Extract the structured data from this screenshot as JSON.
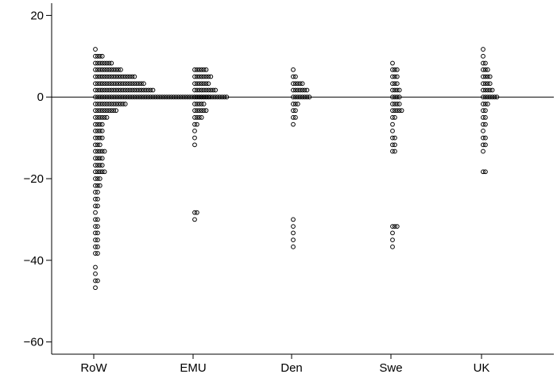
{
  "chart_data": {
    "type": "scatter",
    "title": "",
    "xlabel": "",
    "ylabel": "",
    "categories": [
      "RoW",
      "EMU",
      "Den",
      "Swe",
      "UK"
    ],
    "ylim": [
      -63,
      23
    ],
    "yticks": [
      20,
      0,
      -20,
      -40,
      -60
    ],
    "ytick_labels": [
      "20",
      "0",
      "−20",
      "−40",
      "−60"
    ],
    "reference_line_y": 0,
    "marker": "hollow-circle",
    "series": [
      {
        "category": "RoW",
        "groups": [
          {
            "y": 11.7,
            "n": 1
          },
          {
            "y": 10.0,
            "n": 4
          },
          {
            "y": 8.3,
            "n": 8
          },
          {
            "y": 6.7,
            "n": 12
          },
          {
            "y": 5.0,
            "n": 18
          },
          {
            "y": 3.3,
            "n": 22
          },
          {
            "y": 1.7,
            "n": 26
          },
          {
            "y": 0.0,
            "n": 58
          },
          {
            "y": -1.7,
            "n": 14
          },
          {
            "y": -3.3,
            "n": 10
          },
          {
            "y": -5.0,
            "n": 6
          },
          {
            "y": -6.7,
            "n": 4
          },
          {
            "y": -8.3,
            "n": 4
          },
          {
            "y": -10.0,
            "n": 4
          },
          {
            "y": -11.7,
            "n": 3
          },
          {
            "y": -13.3,
            "n": 5
          },
          {
            "y": -15.0,
            "n": 4
          },
          {
            "y": -16.7,
            "n": 4
          },
          {
            "y": -18.3,
            "n": 5
          },
          {
            "y": -20.0,
            "n": 3
          },
          {
            "y": -21.7,
            "n": 3
          },
          {
            "y": -23.3,
            "n": 2
          },
          {
            "y": -25.0,
            "n": 2
          },
          {
            "y": -26.7,
            "n": 2
          },
          {
            "y": -28.3,
            "n": 1
          },
          {
            "y": -30.0,
            "n": 2
          },
          {
            "y": -31.7,
            "n": 2
          },
          {
            "y": -33.3,
            "n": 2
          },
          {
            "y": -35.0,
            "n": 2
          },
          {
            "y": -36.7,
            "n": 2
          },
          {
            "y": -38.3,
            "n": 2
          },
          {
            "y": -41.7,
            "n": 1
          },
          {
            "y": -43.3,
            "n": 1
          },
          {
            "y": -45.0,
            "n": 2
          },
          {
            "y": -46.7,
            "n": 1
          }
        ]
      },
      {
        "category": "EMU",
        "groups": [
          {
            "y": 6.7,
            "n": 6
          },
          {
            "y": 5.0,
            "n": 8
          },
          {
            "y": 3.3,
            "n": 7
          },
          {
            "y": 1.7,
            "n": 10
          },
          {
            "y": 0.0,
            "n": 7
          },
          {
            "y": -1.7,
            "n": 5
          },
          {
            "y": -3.3,
            "n": 6
          },
          {
            "y": -5.0,
            "n": 4
          },
          {
            "y": -6.7,
            "n": 2
          },
          {
            "y": -8.3,
            "n": 1
          },
          {
            "y": -10.0,
            "n": 1
          },
          {
            "y": -11.7,
            "n": 1
          },
          {
            "y": -28.3,
            "n": 2
          },
          {
            "y": -30.0,
            "n": 1
          }
        ]
      },
      {
        "category": "Den",
        "groups": [
          {
            "y": 6.7,
            "n": 1
          },
          {
            "y": 5.0,
            "n": 2
          },
          {
            "y": 3.3,
            "n": 5
          },
          {
            "y": 1.7,
            "n": 7
          },
          {
            "y": 0.0,
            "n": 8
          },
          {
            "y": -1.7,
            "n": 3
          },
          {
            "y": -3.3,
            "n": 2
          },
          {
            "y": -5.0,
            "n": 2
          },
          {
            "y": -6.7,
            "n": 1
          },
          {
            "y": -30.0,
            "n": 1
          },
          {
            "y": -31.7,
            "n": 1
          },
          {
            "y": -33.3,
            "n": 1
          },
          {
            "y": -35.0,
            "n": 1
          },
          {
            "y": -36.7,
            "n": 1
          }
        ]
      },
      {
        "category": "Swe",
        "groups": [
          {
            "y": 8.3,
            "n": 1
          },
          {
            "y": 6.7,
            "n": 3
          },
          {
            "y": 5.0,
            "n": 3
          },
          {
            "y": 3.3,
            "n": 3
          },
          {
            "y": 1.7,
            "n": 4
          },
          {
            "y": 0.0,
            "n": 4
          },
          {
            "y": -1.7,
            "n": 4
          },
          {
            "y": -3.3,
            "n": 5
          },
          {
            "y": -5.0,
            "n": 2
          },
          {
            "y": -6.7,
            "n": 1
          },
          {
            "y": -8.3,
            "n": 1
          },
          {
            "y": -10.0,
            "n": 2
          },
          {
            "y": -11.7,
            "n": 2
          },
          {
            "y": -13.3,
            "n": 2
          },
          {
            "y": -31.7,
            "n": 3
          },
          {
            "y": -33.3,
            "n": 1
          },
          {
            "y": -35.0,
            "n": 1
          },
          {
            "y": -36.7,
            "n": 1
          }
        ]
      },
      {
        "category": "UK",
        "groups": [
          {
            "y": 11.7,
            "n": 1
          },
          {
            "y": 10.0,
            "n": 1
          },
          {
            "y": 8.3,
            "n": 2
          },
          {
            "y": 6.7,
            "n": 3
          },
          {
            "y": 5.0,
            "n": 4
          },
          {
            "y": 3.3,
            "n": 4
          },
          {
            "y": 1.7,
            "n": 5
          },
          {
            "y": 0.0,
            "n": 7
          },
          {
            "y": -1.7,
            "n": 3
          },
          {
            "y": -3.3,
            "n": 2
          },
          {
            "y": -5.0,
            "n": 2
          },
          {
            "y": -6.7,
            "n": 2
          },
          {
            "y": -8.3,
            "n": 1
          },
          {
            "y": -10.0,
            "n": 2
          },
          {
            "y": -11.7,
            "n": 2
          },
          {
            "y": -13.3,
            "n": 1
          },
          {
            "y": -18.3,
            "n": 2
          }
        ]
      }
    ]
  }
}
